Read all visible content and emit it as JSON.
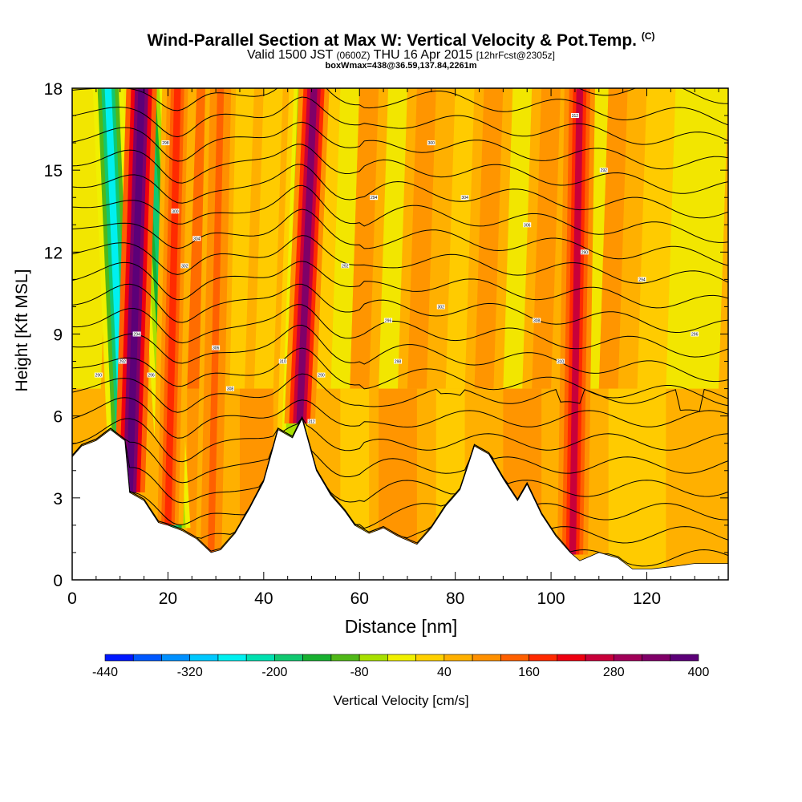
{
  "header": {
    "title": "Wind-Parallel Section at Max W: Vertical Velocity & Pot.Temp.",
    "copyright": "(C)",
    "valid_prefix": "Valid 1500 JST",
    "valid_utc": "(0600Z)",
    "valid_date": "THU 16 Apr 2015",
    "forecast": "[12hrFcst@2305z]",
    "box_info": "boxWmax=438@36.59,137.84,2261m"
  },
  "chart_data": {
    "type": "heatmap",
    "xlabel": "Distance [nm]",
    "ylabel": "Height [Kft MSL]",
    "xlim": [
      0,
      137
    ],
    "ylim": [
      0,
      18
    ],
    "x_ticks": [
      0,
      20,
      40,
      60,
      80,
      100,
      120
    ],
    "y_ticks": [
      0,
      3,
      6,
      9,
      12,
      15,
      18
    ],
    "colorbar": {
      "label": "Vertical Velocity [cm/s]",
      "tick_labels": [
        "-440",
        "-320",
        "-200",
        "-80",
        "40",
        "160",
        "280",
        "400"
      ],
      "colors": [
        "#0018ff",
        "#0058ff",
        "#0090ff",
        "#00c8ff",
        "#00f0f0",
        "#00e0b0",
        "#10c870",
        "#18b030",
        "#50b818",
        "#a8e000",
        "#f0f000",
        "#ffd000",
        "#ffb000",
        "#ff9000",
        "#ff6000",
        "#ff2a00",
        "#ee0010",
        "#c8003a",
        "#a00058",
        "#800068",
        "#5c0078"
      ]
    },
    "terrain": [
      [
        0,
        4.5
      ],
      [
        2,
        4.9
      ],
      [
        5,
        5.1
      ],
      [
        8,
        5.5
      ],
      [
        11,
        5.1
      ],
      [
        12,
        3.2
      ],
      [
        15,
        2.9
      ],
      [
        18,
        2.1
      ],
      [
        20,
        2.0
      ],
      [
        23,
        1.8
      ],
      [
        26,
        1.5
      ],
      [
        29,
        1.0
      ],
      [
        31,
        1.1
      ],
      [
        34,
        1.7
      ],
      [
        37,
        2.6
      ],
      [
        40,
        3.6
      ],
      [
        43,
        5.5
      ],
      [
        46,
        5.2
      ],
      [
        48,
        5.9
      ],
      [
        51,
        4.0
      ],
      [
        54,
        3.1
      ],
      [
        57,
        2.5
      ],
      [
        59,
        2.0
      ],
      [
        62,
        1.7
      ],
      [
        65,
        1.9
      ],
      [
        68,
        1.6
      ],
      [
        72,
        1.3
      ],
      [
        75,
        1.9
      ],
      [
        78,
        2.7
      ],
      [
        81,
        3.3
      ],
      [
        84,
        4.9
      ],
      [
        87,
        4.6
      ],
      [
        90,
        3.7
      ],
      [
        93,
        2.9
      ],
      [
        95,
        3.5
      ],
      [
        98,
        2.4
      ],
      [
        101,
        1.6
      ],
      [
        104,
        1.0
      ],
      [
        106,
        0.7
      ],
      [
        110,
        1.0
      ],
      [
        114,
        0.8
      ],
      [
        117,
        0.4
      ],
      [
        121,
        0.4
      ],
      [
        126,
        0.5
      ],
      [
        130,
        0.6
      ],
      [
        137,
        0.6
      ]
    ],
    "updrafts": [
      {
        "x_base": 12.0,
        "x_top": 14.5,
        "w": 380
      },
      {
        "x_base": 47.5,
        "x_top": 50.5,
        "w": 300
      },
      {
        "x_base": 20.0,
        "x_top": 22.0,
        "w": 140
      },
      {
        "x_base": 104.5,
        "x_top": 106.0,
        "w": 200
      },
      {
        "x_base": 29.0,
        "x_top": 31.0,
        "w": 100
      }
    ],
    "downdrafts": [
      {
        "x_base": 10.5,
        "x_top": 7.5,
        "w": -300
      },
      {
        "x_base": 21.5,
        "x_top": 16.0,
        "w": -220
      },
      {
        "x_base": 46.0,
        "x_top": 48.5,
        "w": -120
      }
    ],
    "contour_labels": [
      "290",
      "292",
      "294",
      "296",
      "298",
      "300",
      "302",
      "304",
      "306",
      "308",
      "310",
      "312"
    ]
  }
}
